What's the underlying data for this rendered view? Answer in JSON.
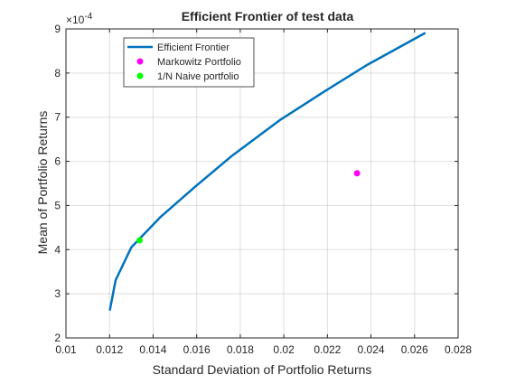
{
  "chart_data": {
    "type": "line",
    "title": "Efficient Frontier of test data",
    "xlabel": "Standard Deviation of Portfolio Returns",
    "ylabel": "Mean of Portfolio Returns",
    "xlim": [
      0.01,
      0.028
    ],
    "ylim": [
      2,
      9
    ],
    "y_exponent_label": "×10",
    "y_exponent_power": "-4",
    "x_ticks": [
      "0.01",
      "0.012",
      "0.014",
      "0.016",
      "0.018",
      "0.02",
      "0.022",
      "0.024",
      "0.026",
      "0.028"
    ],
    "y_ticks": [
      "2",
      "3",
      "4",
      "5",
      "6",
      "7",
      "8",
      "9"
    ],
    "grid": true,
    "legend_placement": "top-left",
    "series": [
      {
        "name": "Efficient Frontier",
        "kind": "line",
        "color": "#0072BD",
        "x": [
          0.01201,
          0.01228,
          0.013,
          0.01432,
          0.01594,
          0.01763,
          0.01981,
          0.02185,
          0.02384,
          0.0265
        ],
        "y": [
          2.62,
          3.31,
          4.05,
          4.73,
          5.43,
          6.13,
          6.93,
          7.58,
          8.19,
          8.91
        ]
      },
      {
        "name": "Markowitz Portfolio",
        "kind": "point",
        "color": "#FF00FF",
        "x": [
          0.02336
        ],
        "y": [
          5.73
        ]
      },
      {
        "name": "1/N Naive portfolio",
        "kind": "point",
        "color": "#00FF00",
        "x": [
          0.01338
        ],
        "y": [
          4.21
        ]
      }
    ]
  }
}
